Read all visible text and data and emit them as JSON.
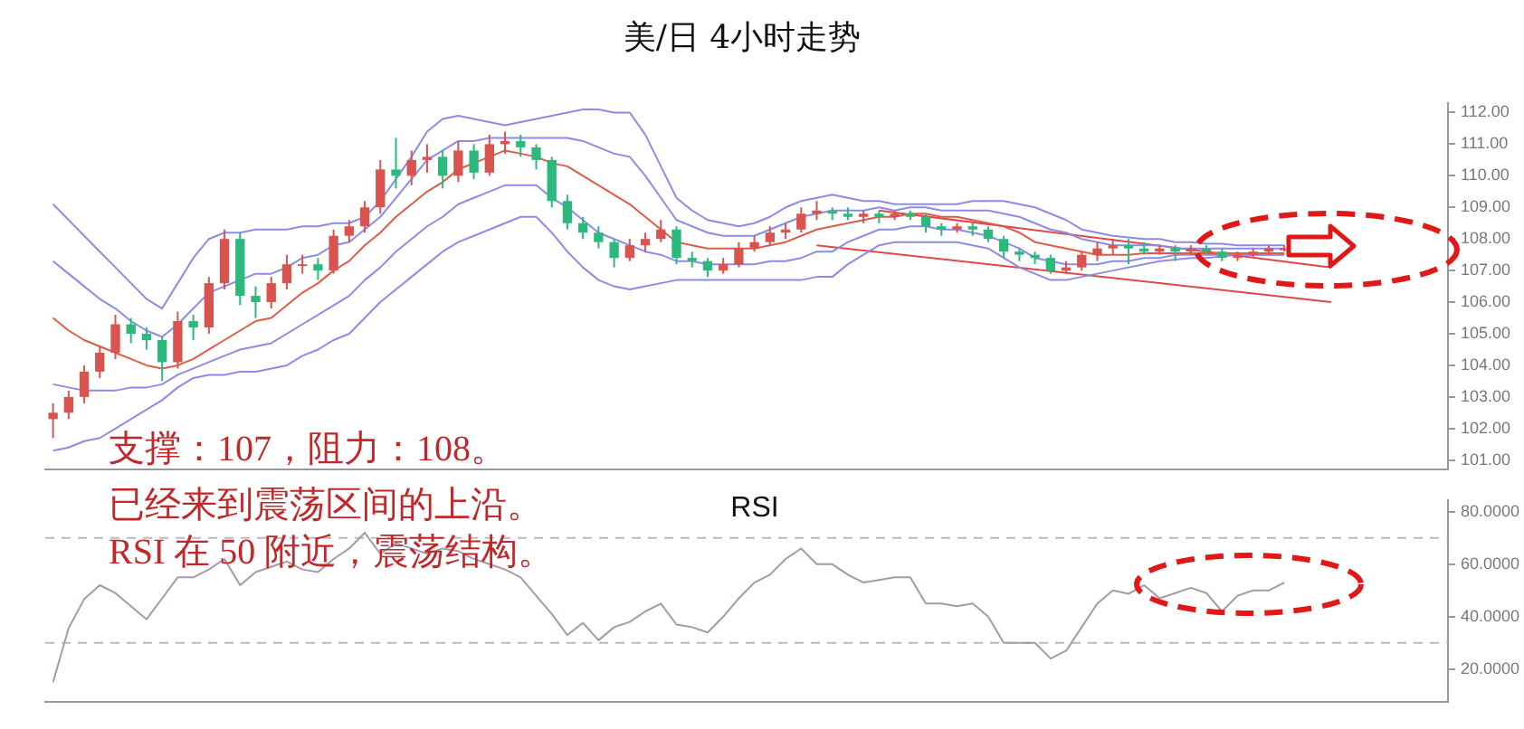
{
  "chart_data": [
    {
      "type": "candlestick",
      "title": "美/日 4小时走势",
      "categories": [
        null,
        null,
        null,
        null,
        null,
        null,
        null,
        null,
        null,
        null,
        null,
        null,
        null,
        null,
        null,
        null,
        null,
        null,
        null,
        null,
        null,
        null,
        null,
        null,
        null,
        null,
        null,
        null,
        null,
        null,
        null,
        null,
        null,
        null,
        null,
        null,
        null,
        null,
        null,
        null,
        null,
        null,
        null,
        null,
        null,
        null,
        null,
        null,
        null,
        null,
        null,
        null,
        null,
        null,
        null,
        null,
        null,
        null,
        null,
        null,
        null,
        null,
        null,
        null,
        null,
        null,
        null,
        null,
        null,
        null,
        null,
        null,
        null,
        null,
        null,
        null,
        null,
        null,
        null,
        null,
        null,
        null,
        null,
        null,
        null,
        null,
        null,
        null,
        null,
        null
      ],
      "ohlc": [
        [
          102.3,
          102.8,
          101.7,
          102.5
        ],
        [
          102.5,
          103.2,
          102.3,
          103.0
        ],
        [
          103.0,
          104.0,
          102.8,
          103.8
        ],
        [
          103.8,
          104.6,
          103.6,
          104.4
        ],
        [
          104.4,
          105.6,
          104.2,
          105.3
        ],
        [
          105.3,
          105.5,
          104.7,
          105.0
        ],
        [
          105.0,
          105.2,
          104.5,
          104.8
        ],
        [
          104.8,
          104.9,
          103.5,
          104.1
        ],
        [
          104.1,
          105.7,
          103.9,
          105.4
        ],
        [
          105.4,
          105.6,
          104.8,
          105.2
        ],
        [
          105.2,
          106.8,
          105.0,
          106.6
        ],
        [
          106.6,
          108.3,
          106.4,
          108.0
        ],
        [
          108.0,
          108.2,
          105.9,
          106.2
        ],
        [
          106.2,
          106.5,
          105.5,
          106.0
        ],
        [
          106.0,
          106.8,
          105.8,
          106.6
        ],
        [
          106.6,
          107.5,
          106.4,
          107.2
        ],
        [
          107.2,
          107.5,
          106.9,
          107.2
        ],
        [
          107.2,
          107.4,
          106.7,
          107.0
        ],
        [
          107.0,
          108.3,
          106.9,
          108.1
        ],
        [
          108.1,
          108.6,
          107.9,
          108.4
        ],
        [
          108.4,
          109.2,
          108.2,
          109.0
        ],
        [
          109.0,
          110.5,
          108.8,
          110.2
        ],
        [
          110.2,
          111.2,
          109.6,
          110.0
        ],
        [
          110.0,
          110.8,
          109.7,
          110.5
        ],
        [
          110.5,
          111.0,
          110.1,
          110.6
        ],
        [
          110.6,
          110.8,
          109.6,
          110.0
        ],
        [
          110.0,
          111.1,
          109.8,
          110.8
        ],
        [
          110.8,
          111.0,
          109.9,
          110.1
        ],
        [
          110.1,
          111.3,
          110.0,
          111.0
        ],
        [
          111.0,
          111.4,
          110.7,
          111.1
        ],
        [
          111.1,
          111.3,
          110.6,
          110.9
        ],
        [
          110.9,
          111.0,
          110.2,
          110.5
        ],
        [
          110.5,
          110.6,
          109.0,
          109.2
        ],
        [
          109.2,
          109.4,
          108.3,
          108.5
        ],
        [
          108.5,
          108.7,
          108.0,
          108.2
        ],
        [
          108.2,
          108.4,
          107.7,
          107.9
        ],
        [
          107.9,
          108.0,
          107.1,
          107.4
        ],
        [
          107.4,
          108.0,
          107.3,
          107.8
        ],
        [
          107.8,
          108.2,
          107.6,
          108.0
        ],
        [
          108.0,
          108.6,
          107.9,
          108.3
        ],
        [
          108.3,
          108.4,
          107.2,
          107.4
        ],
        [
          107.4,
          107.6,
          107.1,
          107.3
        ],
        [
          107.3,
          107.4,
          106.8,
          107.0
        ],
        [
          107.0,
          107.4,
          106.9,
          107.2
        ],
        [
          107.2,
          107.9,
          107.1,
          107.7
        ],
        [
          107.7,
          108.1,
          107.6,
          107.9
        ],
        [
          107.9,
          108.4,
          107.8,
          108.2
        ],
        [
          108.2,
          108.5,
          108.0,
          108.3
        ],
        [
          108.3,
          109.0,
          108.2,
          108.8
        ],
        [
          108.8,
          109.2,
          108.6,
          108.9
        ],
        [
          108.9,
          109.0,
          108.6,
          108.8
        ],
        [
          108.8,
          109.0,
          108.6,
          108.7
        ],
        [
          108.7,
          108.9,
          108.5,
          108.8
        ],
        [
          108.8,
          108.9,
          108.5,
          108.7
        ],
        [
          108.7,
          108.9,
          108.6,
          108.8
        ],
        [
          108.8,
          108.9,
          108.6,
          108.7
        ],
        [
          108.7,
          108.8,
          108.2,
          108.4
        ],
        [
          108.4,
          108.5,
          108.1,
          108.3
        ],
        [
          108.3,
          108.5,
          108.2,
          108.4
        ],
        [
          108.4,
          108.5,
          108.1,
          108.3
        ],
        [
          108.3,
          108.4,
          107.9,
          108.0
        ],
        [
          108.0,
          108.1,
          107.4,
          107.6
        ],
        [
          107.6,
          107.7,
          107.3,
          107.5
        ],
        [
          107.5,
          107.6,
          107.2,
          107.4
        ],
        [
          107.4,
          107.5,
          106.9,
          107.0
        ],
        [
          107.0,
          107.3,
          106.9,
          107.1
        ],
        [
          107.1,
          107.6,
          107.0,
          107.5
        ],
        [
          107.5,
          107.9,
          107.3,
          107.7
        ],
        [
          107.7,
          108.0,
          107.5,
          107.8
        ],
        [
          107.8,
          108.0,
          107.2,
          107.7
        ],
        [
          107.7,
          107.9,
          107.5,
          107.6
        ],
        [
          107.6,
          107.8,
          107.5,
          107.7
        ],
        [
          107.7,
          107.8,
          107.3,
          107.6
        ],
        [
          107.6,
          107.8,
          107.5,
          107.7
        ],
        [
          107.7,
          107.8,
          107.5,
          107.6
        ],
        [
          107.6,
          107.7,
          107.3,
          107.4
        ],
        [
          107.4,
          107.6,
          107.3,
          107.5
        ],
        [
          107.5,
          107.7,
          107.4,
          107.6
        ],
        [
          107.6,
          107.8,
          107.5,
          107.7
        ],
        [
          107.7,
          107.8,
          107.6,
          107.7
        ],
        null,
        null,
        null,
        null,
        null,
        null,
        null,
        null,
        null,
        null
      ],
      "colors": [
        "#d9534f",
        "#d9534f",
        "#d9534f",
        "#d9534f",
        "#d9534f",
        "#2db87d",
        "#2db87d",
        "#2db87d",
        "#d9534f",
        "#2db87d",
        "#d9534f",
        "#d9534f",
        "#2db87d",
        "#2db87d",
        "#d9534f",
        "#d9534f",
        "#d9534f",
        "#2db87d",
        "#d9534f",
        "#d9534f",
        "#d9534f",
        "#d9534f",
        "#2db87d",
        "#d9534f",
        "#d9534f",
        "#2db87d",
        "#d9534f",
        "#2db87d",
        "#d9534f",
        "#d9534f",
        "#2db87d",
        "#2db87d",
        "#2db87d",
        "#2db87d",
        "#2db87d",
        "#2db87d",
        "#2db87d",
        "#d9534f",
        "#d9534f",
        "#d9534f",
        "#2db87d",
        "#2db87d",
        "#2db87d",
        "#d9534f",
        "#d9534f",
        "#d9534f",
        "#d9534f",
        "#d9534f",
        "#d9534f",
        "#d9534f",
        "#2db87d",
        "#2db87d",
        "#d9534f",
        "#2db87d",
        "#d9534f",
        "#2db87d",
        "#2db87d",
        "#2db87d",
        "#d9534f",
        "#2db87d",
        "#2db87d",
        "#2db87d",
        "#2db87d",
        "#2db87d",
        "#2db87d",
        "#d9534f",
        "#d9534f",
        "#d9534f",
        "#d9534f",
        "#2db87d",
        "#2db87d",
        "#d9534f",
        "#2db87d",
        "#d9534f",
        "#2db87d",
        "#2db87d",
        "#d9534f",
        "#d9534f",
        "#d9534f",
        "#d9534f",
        null,
        null,
        null,
        null,
        null,
        null,
        null,
        null,
        null,
        null
      ],
      "series": [
        {
          "type": "line",
          "color": "#8c8ce6",
          "values": [
            109.1,
            108.6,
            108.1,
            107.6,
            107.1,
            106.6,
            106.1,
            105.8,
            106.6,
            107.4,
            108.0,
            108.2,
            108.2,
            108.3,
            108.3,
            108.3,
            108.4,
            108.4,
            108.5,
            108.5,
            108.7,
            109.2,
            109.9,
            110.6,
            111.4,
            111.8,
            111.9,
            111.8,
            111.7,
            111.6,
            111.7,
            111.8,
            111.9,
            112.0,
            112.1,
            112.1,
            112.0,
            112.0,
            111.3,
            110.3,
            109.3,
            108.9,
            108.6,
            108.5,
            108.4,
            108.5,
            108.7,
            109.0,
            109.2,
            109.3,
            109.4,
            109.3,
            109.2,
            109.2,
            109.1,
            109.1,
            109.1,
            109.1,
            109.1,
            109.2,
            109.2,
            109.2,
            109.1,
            109.0,
            108.8,
            108.6,
            108.3,
            108.2,
            108.1,
            108.05,
            108.0,
            108.0,
            107.9,
            107.9,
            107.85,
            107.85,
            107.8,
            107.8,
            107.8,
            107.8,
            null,
            null,
            null,
            null,
            null,
            null,
            null,
            null,
            null,
            null
          ]
        },
        {
          "type": "line",
          "color": "#8c8ce6",
          "values": [
            107.3,
            106.9,
            106.5,
            106.1,
            105.8,
            105.4,
            105.1,
            104.9,
            105.3,
            105.8,
            106.3,
            106.5,
            106.7,
            106.9,
            106.9,
            107.1,
            107.4,
            107.5,
            107.8,
            107.9,
            108.3,
            108.7,
            109.3,
            109.9,
            110.5,
            110.8,
            111.1,
            111.1,
            111.2,
            111.2,
            111.2,
            111.2,
            111.2,
            111.2,
            111.1,
            110.9,
            110.7,
            110.6,
            110.0,
            109.3,
            108.6,
            108.4,
            108.2,
            108.1,
            108.1,
            108.1,
            108.3,
            108.5,
            108.7,
            108.8,
            108.9,
            108.9,
            108.9,
            109.0,
            108.9,
            109.0,
            109.0,
            108.9,
            108.9,
            108.9,
            108.9,
            108.8,
            108.7,
            108.5,
            108.3,
            108.2,
            108.0,
            107.9,
            107.8,
            107.8,
            107.8,
            107.8,
            107.7,
            107.7,
            107.7,
            107.7,
            107.7,
            107.7,
            107.7,
            107.7,
            null,
            null,
            null,
            null,
            null,
            null,
            null,
            null,
            null,
            null
          ]
        },
        {
          "type": "line",
          "color": "#e05a4a",
          "values": [
            105.5,
            105.1,
            104.8,
            104.6,
            104.4,
            104.2,
            104.0,
            103.9,
            104.0,
            104.2,
            104.5,
            104.8,
            105.1,
            105.4,
            105.5,
            105.9,
            106.3,
            106.6,
            107.0,
            107.3,
            107.8,
            108.2,
            108.7,
            109.1,
            109.5,
            109.8,
            110.2,
            110.4,
            110.6,
            110.8,
            110.7,
            110.6,
            110.4,
            110.3,
            110.0,
            109.7,
            109.4,
            109.1,
            108.7,
            108.3,
            107.9,
            107.8,
            107.7,
            107.7,
            107.7,
            107.7,
            107.8,
            107.9,
            108.1,
            108.3,
            108.4,
            108.5,
            108.6,
            108.7,
            108.7,
            108.8,
            108.8,
            108.7,
            108.7,
            108.6,
            108.5,
            108.4,
            108.2,
            107.9,
            107.8,
            107.7,
            107.6,
            107.5,
            107.5,
            107.5,
            107.55,
            107.55,
            107.55,
            107.55,
            107.55,
            107.55,
            107.55,
            107.55,
            107.55,
            107.55,
            null,
            null,
            null,
            null,
            null,
            null,
            null,
            null,
            null,
            null
          ]
        },
        {
          "type": "line",
          "color": "#8c8ce6",
          "values": [
            103.4,
            103.3,
            103.2,
            103.2,
            103.2,
            103.3,
            103.3,
            103.4,
            103.7,
            103.9,
            104.1,
            104.3,
            104.5,
            104.6,
            104.7,
            105.0,
            105.3,
            105.6,
            105.9,
            106.2,
            106.7,
            107.1,
            107.6,
            108.0,
            108.4,
            108.7,
            109.1,
            109.3,
            109.5,
            109.7,
            109.7,
            109.7,
            109.3,
            109.0,
            108.6,
            108.2,
            108.0,
            107.8,
            107.6,
            107.5,
            107.3,
            107.3,
            107.2,
            107.2,
            107.2,
            107.2,
            107.3,
            107.3,
            107.4,
            107.6,
            107.6,
            107.9,
            108.1,
            108.3,
            108.3,
            108.4,
            108.4,
            108.3,
            108.3,
            108.2,
            108.1,
            107.9,
            107.7,
            107.4,
            107.3,
            107.2,
            107.2,
            107.2,
            107.3,
            107.3,
            107.4,
            107.4,
            107.5,
            107.5,
            107.5,
            107.5,
            107.5,
            107.5,
            107.5,
            107.5,
            null,
            null,
            null,
            null,
            null,
            null,
            null,
            null,
            null,
            null
          ]
        },
        {
          "type": "line",
          "color": "#8c8ce6",
          "values": [
            101.3,
            101.4,
            101.6,
            101.7,
            102.0,
            102.3,
            102.6,
            102.9,
            103.3,
            103.6,
            103.7,
            103.7,
            103.8,
            103.8,
            103.9,
            104.0,
            104.3,
            104.5,
            104.8,
            105.0,
            105.5,
            106.0,
            106.4,
            106.8,
            107.2,
            107.6,
            107.9,
            108.1,
            108.3,
            108.5,
            108.7,
            108.7,
            108.2,
            107.6,
            107.1,
            106.7,
            106.5,
            106.4,
            106.5,
            106.6,
            106.7,
            106.7,
            106.7,
            106.7,
            106.7,
            106.7,
            106.7,
            106.7,
            106.7,
            106.8,
            106.8,
            107.2,
            107.5,
            107.8,
            107.9,
            107.9,
            107.9,
            107.9,
            107.9,
            107.8,
            107.7,
            107.4,
            107.1,
            106.9,
            106.7,
            106.7,
            106.8,
            106.9,
            107.0,
            107.1,
            107.2,
            107.3,
            107.35,
            107.4,
            107.4,
            107.45,
            107.5,
            107.5,
            107.5,
            107.5,
            null,
            null,
            null,
            null,
            null,
            null,
            null,
            null,
            null,
            null
          ]
        },
        {
          "type": "line",
          "color": "#e04848",
          "values": [
            null,
            null,
            null,
            null,
            null,
            null,
            null,
            null,
            null,
            null,
            null,
            null,
            null,
            null,
            null,
            null,
            null,
            null,
            null,
            null,
            null,
            null,
            null,
            null,
            null,
            null,
            null,
            null,
            null,
            null,
            null,
            null,
            null,
            null,
            null,
            null,
            null,
            null,
            null,
            null,
            null,
            null,
            null,
            null,
            null,
            null,
            null,
            null,
            null,
            107.8,
            null,
            null,
            null,
            null,
            null,
            null,
            null,
            null,
            null,
            null,
            null,
            null,
            null,
            null,
            null,
            null,
            null,
            null,
            null,
            null,
            null,
            null,
            null,
            null,
            null,
            null,
            null,
            null,
            null,
            null,
            null,
            null,
            106.0,
            null,
            null,
            null,
            null,
            null,
            null,
            null
          ]
        },
        {
          "type": "line",
          "color": "#e04848",
          "values": [
            null,
            null,
            null,
            null,
            null,
            null,
            null,
            null,
            null,
            null,
            null,
            null,
            null,
            null,
            null,
            null,
            null,
            null,
            null,
            null,
            null,
            null,
            null,
            null,
            null,
            null,
            null,
            null,
            null,
            null,
            null,
            null,
            null,
            null,
            null,
            null,
            null,
            null,
            null,
            null,
            null,
            null,
            null,
            null,
            null,
            null,
            null,
            null,
            null,
            null,
            null,
            null,
            null,
            108.9,
            null,
            null,
            null,
            null,
            null,
            null,
            null,
            null,
            null,
            null,
            null,
            null,
            null,
            null,
            null,
            null,
            null,
            null,
            null,
            null,
            null,
            null,
            null,
            null,
            null,
            null,
            null,
            null,
            107.1,
            null,
            null,
            null,
            null,
            null,
            null,
            null
          ]
        }
      ],
      "ylim": [
        100.7,
        112.3
      ],
      "yticks": [
        {
          "value": 101,
          "label": "101.00"
        },
        {
          "value": 102,
          "label": "102.00"
        },
        {
          "value": 103,
          "label": "103.00"
        },
        {
          "value": 104,
          "label": "104.00"
        },
        {
          "value": 105,
          "label": "105.00"
        },
        {
          "value": 106,
          "label": "106.00"
        },
        {
          "value": 107,
          "label": "107.00"
        },
        {
          "value": 108,
          "label": "108.00"
        },
        {
          "value": 109,
          "label": "109.00"
        },
        {
          "value": 110,
          "label": "110.00"
        },
        {
          "value": 111,
          "label": "111.00"
        },
        {
          "value": 112,
          "label": "112.00"
        }
      ],
      "tick_labels": "y",
      "grid": false,
      "legend": false,
      "marker": "none",
      "line_style": "solid",
      "annotations": [
        "支撑：107，阻力：108。"
      ]
    },
    {
      "type": "line",
      "title": "RSI",
      "categories": [
        null,
        null,
        null,
        null,
        null,
        null,
        null,
        null,
        null,
        null,
        null,
        null,
        null,
        null,
        null,
        null,
        null,
        null,
        null,
        null,
        null,
        null,
        null,
        null,
        null,
        null,
        null,
        null,
        null,
        null,
        null,
        null,
        null,
        null,
        null,
        null,
        null,
        null,
        null,
        null,
        null,
        null,
        null,
        null,
        null,
        null,
        null,
        null,
        null,
        null,
        null,
        null,
        null,
        null,
        null,
        null,
        null,
        null,
        null,
        null,
        null,
        null,
        null,
        null,
        null,
        null,
        null,
        null,
        null,
        null,
        null,
        null,
        null,
        null,
        null,
        null,
        null,
        null,
        null,
        null,
        null,
        null,
        null,
        null,
        null,
        null,
        null,
        null,
        null,
        null
      ],
      "color": "#a898a8",
      "values": [
        15,
        35.6,
        46.7,
        52,
        49,
        44,
        39,
        47,
        55,
        55,
        58,
        62,
        52,
        57,
        59,
        61,
        58,
        57,
        62,
        66,
        72,
        64,
        68,
        66,
        64,
        66,
        65,
        62,
        60,
        58,
        55,
        48,
        41,
        33,
        37.6,
        31,
        36,
        38,
        42,
        45,
        37,
        36,
        34,
        40,
        47,
        53,
        56,
        62,
        66,
        60,
        60,
        56,
        53,
        54,
        55,
        55,
        45,
        45,
        44,
        45,
        40,
        30,
        30,
        30,
        24,
        27,
        36,
        45,
        50,
        48.7,
        52,
        47,
        49,
        51,
        49,
        42,
        48,
        50,
        50,
        53,
        null,
        null,
        null,
        null,
        null,
        null,
        null,
        null,
        null,
        null
      ],
      "ylim": [
        7.5,
        84.5
      ],
      "yticks": [
        {
          "value": 20,
          "label": "20.0000"
        },
        {
          "value": 40,
          "label": "40.0000"
        },
        {
          "value": 60,
          "label": "60.0000"
        },
        {
          "value": 80,
          "label": "80.0000"
        }
      ],
      "ref_lines": [
        {
          "axis": "y",
          "value": 70,
          "color": "#bbbbbb",
          "line_style": "dashed"
        },
        {
          "axis": "y",
          "value": 30,
          "color": "#bbbbbb",
          "line_style": "dashed"
        }
      ],
      "tick_labels": "y",
      "grid": false,
      "legend": false,
      "marker": "none",
      "line_style": "solid",
      "annotations": [
        "已经来到震荡区间的上沿。",
        "RSI 在 50 附近，震荡结构。"
      ]
    }
  ]
}
